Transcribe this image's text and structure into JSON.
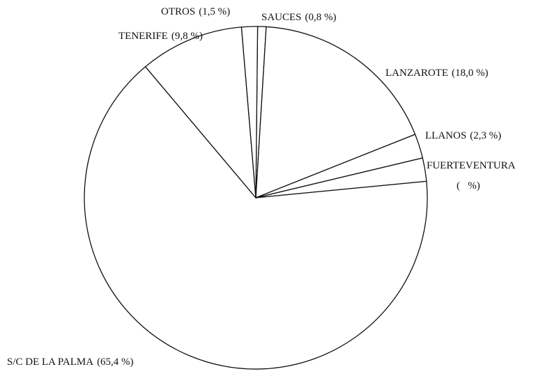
{
  "chart_data": {
    "type": "pie",
    "categories": [
      "SAUCES",
      "LANZAROTE",
      "LLANOS",
      "FUERTEVENTURA",
      "S/C DE LA PALMA",
      "TENERIFE",
      "OTROS"
    ],
    "values": [
      0.8,
      18.0,
      2.3,
      2.2,
      65.4,
      9.8,
      1.5
    ],
    "value_labels": [
      "(0,8 %)",
      "(18,0 %)",
      "(2,3 %)",
      "(   %)",
      "(65,4 %)",
      "(9,8 %)",
      "(1,5 %)"
    ],
    "color": "#ffffff"
  }
}
